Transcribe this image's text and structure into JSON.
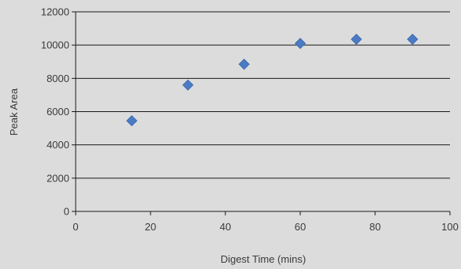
{
  "chart_data": {
    "type": "scatter",
    "title": "",
    "xlabel": "Digest Time (mins)",
    "ylabel": "Peak Area",
    "xlim": [
      0,
      100
    ],
    "ylim": [
      0,
      12000
    ],
    "x_ticks": [
      0,
      20,
      40,
      60,
      80,
      100
    ],
    "y_ticks": [
      0,
      2000,
      4000,
      6000,
      8000,
      10000,
      12000
    ],
    "grid": "horizontal",
    "legend": "none",
    "marker": "diamond",
    "series": [
      {
        "x": [
          15,
          30,
          45,
          60,
          75,
          90
        ],
        "y": [
          5450,
          7600,
          8850,
          10100,
          10350,
          10350
        ]
      }
    ],
    "colors": {
      "background": "#dcdcdc",
      "marker": "#4a7bc4",
      "marker_edge": "#3a66a8",
      "grid": "#1a1a1a",
      "axis": "#1a1a1a",
      "text": "#3a3a3a"
    }
  }
}
